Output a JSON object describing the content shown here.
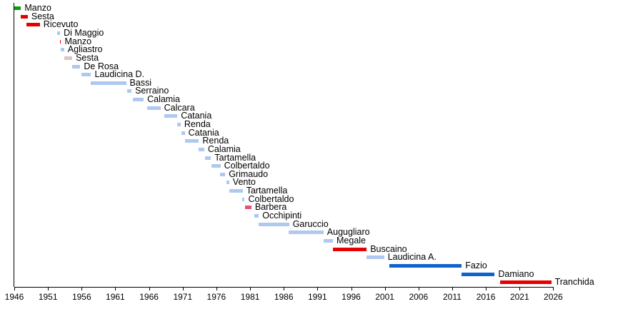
{
  "colors": {
    "lightblue": "#aec8f0",
    "red": "#e80000",
    "green": "#0a9e0a",
    "pink": "#d8c6c2",
    "crimson": "#e4527c",
    "blue": "#0e63cd",
    "axis": "#000000",
    "text": "#000000"
  },
  "chart_data": {
    "type": "bar",
    "variant": "horizontal-gantt-timeline",
    "title": "",
    "xlabel": "",
    "ylabel": "",
    "grid": false,
    "legend": false,
    "x_axis": {
      "min": 1946,
      "max": 2026,
      "tick_interval": 5,
      "ticks": [
        1946,
        1951,
        1956,
        1961,
        1966,
        1971,
        1976,
        1981,
        1986,
        1991,
        1996,
        2001,
        2006,
        2011,
        2016,
        2021,
        2026
      ]
    },
    "series": [
      {
        "name": "Manzo",
        "start": 1946.0,
        "end": 1947.0,
        "color": "green"
      },
      {
        "name": "Sesta",
        "start": 1947.0,
        "end": 1948.0,
        "color": "red"
      },
      {
        "name": "Ricevuto",
        "start": 1947.8,
        "end": 1949.8,
        "color": "red"
      },
      {
        "name": "Di Maggio",
        "start": 1952.4,
        "end": 1952.8,
        "color": "lightblue"
      },
      {
        "name": "Manzo",
        "start": 1952.8,
        "end": 1952.95,
        "color": "red"
      },
      {
        "name": "Agliastro",
        "start": 1952.9,
        "end": 1953.4,
        "color": "lightblue"
      },
      {
        "name": "Sesta",
        "start": 1953.4,
        "end": 1954.6,
        "color": "pink"
      },
      {
        "name": "De Rosa",
        "start": 1954.6,
        "end": 1955.8,
        "color": "lightblue"
      },
      {
        "name": "Laudicina D.",
        "start": 1956.0,
        "end": 1957.4,
        "color": "lightblue"
      },
      {
        "name": "Bassi",
        "start": 1957.3,
        "end": 1962.6,
        "color": "lightblue"
      },
      {
        "name": "Serraino",
        "start": 1962.8,
        "end": 1963.4,
        "color": "lightblue"
      },
      {
        "name": "Calamia",
        "start": 1963.6,
        "end": 1965.2,
        "color": "lightblue"
      },
      {
        "name": "Calcara",
        "start": 1965.7,
        "end": 1967.7,
        "color": "lightblue"
      },
      {
        "name": "Catania",
        "start": 1968.3,
        "end": 1970.2,
        "color": "lightblue"
      },
      {
        "name": "Renda",
        "start": 1970.2,
        "end": 1970.7,
        "color": "lightblue"
      },
      {
        "name": "Catania",
        "start": 1970.8,
        "end": 1971.3,
        "color": "lightblue"
      },
      {
        "name": "Renda",
        "start": 1971.3,
        "end": 1973.4,
        "color": "lightblue"
      },
      {
        "name": "Calamia",
        "start": 1973.4,
        "end": 1974.2,
        "color": "lightblue"
      },
      {
        "name": "Tartamella",
        "start": 1974.3,
        "end": 1975.2,
        "color": "lightblue"
      },
      {
        "name": "Colbertaldo",
        "start": 1975.3,
        "end": 1976.6,
        "color": "lightblue"
      },
      {
        "name": "Grimaudo",
        "start": 1976.5,
        "end": 1977.3,
        "color": "lightblue"
      },
      {
        "name": "Vento",
        "start": 1977.5,
        "end": 1977.9,
        "color": "lightblue"
      },
      {
        "name": "Tartamella",
        "start": 1977.9,
        "end": 1979.9,
        "color": "lightblue"
      },
      {
        "name": "Colbertaldo",
        "start": 1979.8,
        "end": 1980.2,
        "color": "lightblue"
      },
      {
        "name": "Barbera",
        "start": 1980.2,
        "end": 1981.2,
        "color": "crimson"
      },
      {
        "name": "Occhipinti",
        "start": 1981.6,
        "end": 1982.3,
        "color": "lightblue"
      },
      {
        "name": "Garuccio",
        "start": 1982.3,
        "end": 1986.8,
        "color": "lightblue"
      },
      {
        "name": "Augugliaro",
        "start": 1986.7,
        "end": 1991.9,
        "color": "lightblue"
      },
      {
        "name": "Megale",
        "start": 1991.9,
        "end": 1993.3,
        "color": "lightblue"
      },
      {
        "name": "Buscaino",
        "start": 1993.3,
        "end": 1998.3,
        "color": "red"
      },
      {
        "name": "Laudicina A.",
        "start": 1998.3,
        "end": 2000.9,
        "color": "lightblue"
      },
      {
        "name": "Fazio",
        "start": 2001.7,
        "end": 2012.4,
        "color": "blue"
      },
      {
        "name": "Damiano",
        "start": 2012.4,
        "end": 2017.3,
        "color": "blue"
      },
      {
        "name": "Tranchida",
        "start": 2018.1,
        "end": 2025.7,
        "color": "red"
      }
    ]
  }
}
